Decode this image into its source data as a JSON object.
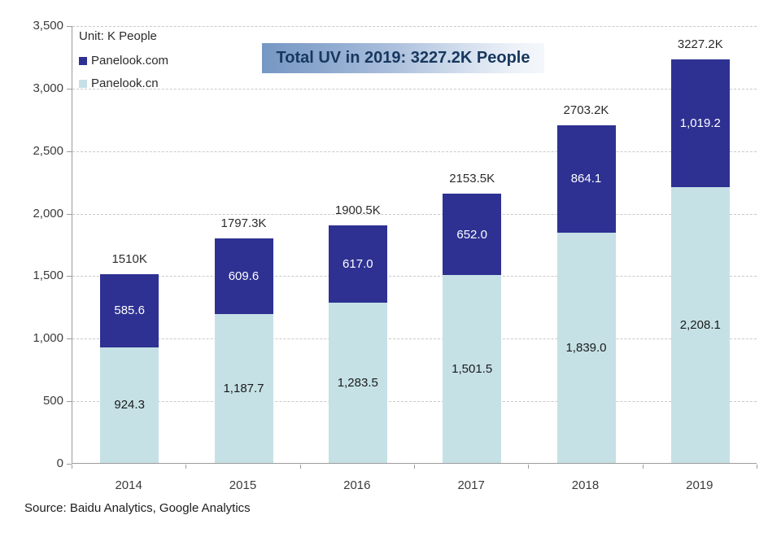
{
  "chart": {
    "unit_label": "Unit: K People",
    "title": "Total UV in 2019: 3227.2K People",
    "source": "Source: Baidu Analytics, Google Analytics",
    "legend": [
      {
        "label": "Panelook.com",
        "color": "#2e3192"
      },
      {
        "label": "Panelook.cn",
        "color": "#c5e1e6"
      }
    ]
  },
  "chart_data": {
    "type": "bar",
    "stacked": true,
    "title": "Total UV in 2019: 3227.2K People",
    "unit": "K People",
    "categories": [
      "2014",
      "2015",
      "2016",
      "2017",
      "2018",
      "2019"
    ],
    "series": [
      {
        "name": "Panelook.cn",
        "color": "#c5e1e6",
        "label_color": "#1a1a1a",
        "values": [
          924.3,
          1187.7,
          1283.5,
          1501.5,
          1839.0,
          2208.1
        ],
        "labels": [
          "924.3",
          "1,187.7",
          "1,283.5",
          "1,501.5",
          "1,839.0",
          "2,208.1"
        ]
      },
      {
        "name": "Panelook.com",
        "color": "#2e3192",
        "label_color": "#ffffff",
        "values": [
          585.6,
          609.6,
          617.0,
          652.0,
          864.1,
          1019.2
        ],
        "labels": [
          "585.6",
          "609.6",
          "617.0",
          "652.0",
          "864.1",
          "1,019.2"
        ]
      }
    ],
    "totals": [
      "1510K",
      "1797.3K",
      "1900.5K",
      "2153.5K",
      "2703.2K",
      "3227.2K"
    ],
    "ylim": [
      0,
      3500
    ],
    "yticks": [
      {
        "value": 0,
        "label": "0"
      },
      {
        "value": 500,
        "label": "500"
      },
      {
        "value": 1000,
        "label": "1,000"
      },
      {
        "value": 1500,
        "label": "1,500"
      },
      {
        "value": 2000,
        "label": "2,000"
      },
      {
        "value": 2500,
        "label": "2,500"
      },
      {
        "value": 3000,
        "label": "3,000"
      },
      {
        "value": 3500,
        "label": "3,500"
      }
    ],
    "grid": "horizontal-dashed",
    "legend_position": "top-left-inside"
  }
}
